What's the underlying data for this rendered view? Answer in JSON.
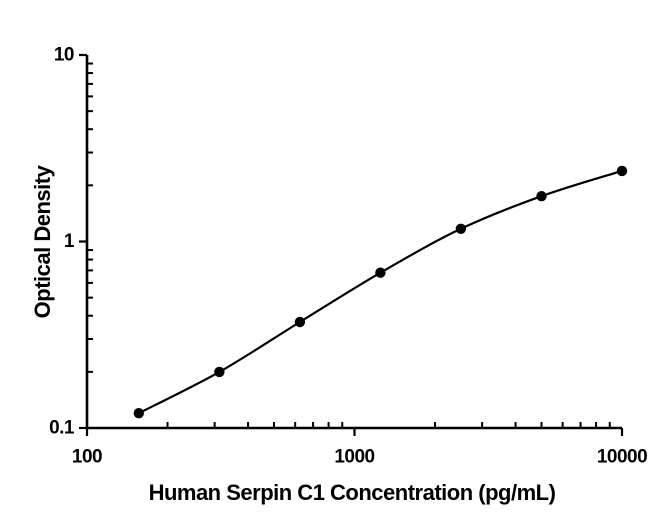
{
  "figure": {
    "background": "#ffffff",
    "ink_color": "#000000"
  },
  "chart_data": {
    "type": "line",
    "title": "",
    "xlabel": "Human Serpin C1 Concentration (pg/mL)",
    "ylabel": "Optical Density",
    "x_scale": "log",
    "y_scale": "log",
    "xlim": [
      100,
      10000
    ],
    "ylim": [
      0.1,
      10
    ],
    "grid": false,
    "legend_position": "none",
    "x_major_ticks": [
      100,
      1000,
      10000
    ],
    "x_major_tick_labels": [
      "100",
      "1000",
      "10000"
    ],
    "y_major_ticks": [
      10,
      1,
      0.1
    ],
    "y_major_tick_labels": [
      "10",
      "1",
      "0.1"
    ],
    "x_minor_ticks": [
      200,
      300,
      400,
      500,
      600,
      700,
      800,
      900,
      2000,
      3000,
      4000,
      5000,
      6000,
      7000,
      8000,
      9000
    ],
    "y_minor_ticks": [
      0.2,
      0.3,
      0.4,
      0.5,
      0.6,
      0.7,
      0.8,
      0.9,
      2,
      3,
      4,
      5,
      6,
      7,
      8,
      9
    ],
    "series": [
      {
        "name": "standard-curve",
        "marker": "filled-circle",
        "line_style": "smooth",
        "color": "#000000",
        "x": [
          156.25,
          312.5,
          625,
          1250,
          2500,
          5000,
          10000
        ],
        "y": [
          0.12,
          0.2,
          0.37,
          0.68,
          1.17,
          1.75,
          2.39
        ]
      }
    ]
  }
}
